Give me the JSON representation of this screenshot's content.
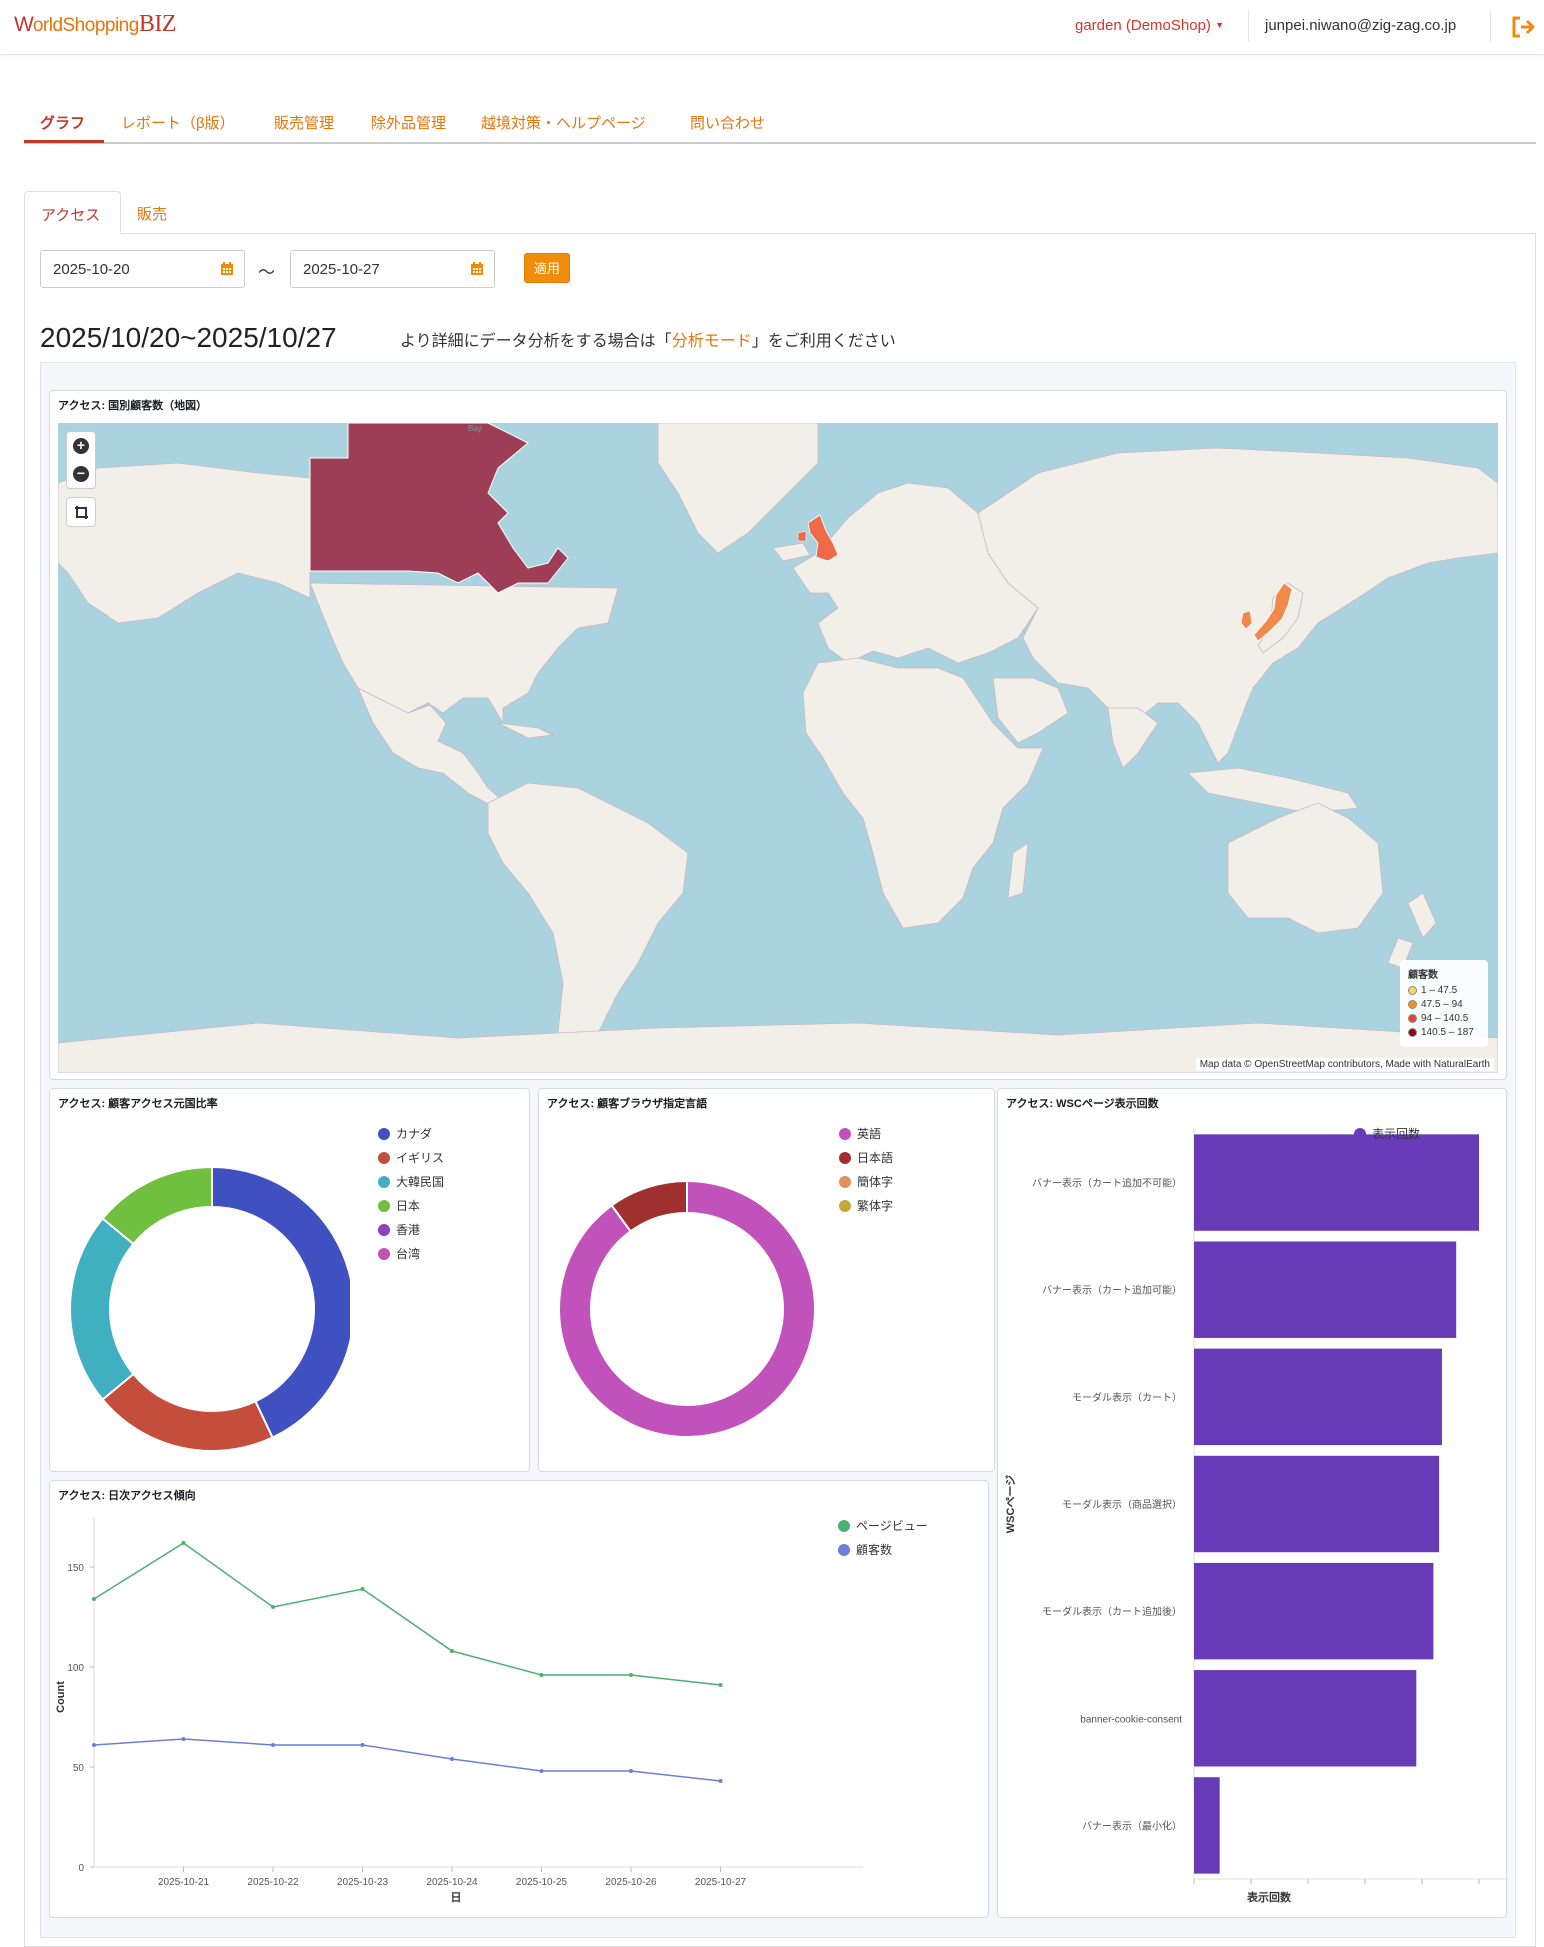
{
  "header": {
    "logo_part1": "W",
    "logo_part2": "orldShopping",
    "logo_part3": "BIZ",
    "shop_selector": "garden (DemoShop)",
    "user_email": "junpei.niwano@zig-zag.co.jp"
  },
  "main_nav": {
    "tabs": [
      "グラフ",
      "レポート（β版）",
      "販売管理",
      "除外品管理",
      "越境対策・ヘルプページ",
      "問い合わせ"
    ]
  },
  "sub_tabs": [
    "アクセス",
    "販売"
  ],
  "date_filter": {
    "start": "2025-10-20",
    "end": "2025-10-27",
    "separator": "〜",
    "apply_label": "適用"
  },
  "range_title": "2025/10/20~2025/10/27",
  "hint": {
    "before": "より詳細にデータ分析をする場合は「",
    "link": "分析モード",
    "after": "」をご利用ください"
  },
  "map_panel": {
    "title": "アクセス: 国別顧客数（地図）",
    "label_bay": "Bay",
    "legend_title": "顧客数",
    "legend": [
      {
        "label": "1 – 47.5",
        "color": "#f7d768"
      },
      {
        "label": "47.5 – 94",
        "color": "#f28e2c"
      },
      {
        "label": "94 – 140.5",
        "color": "#e8452c"
      },
      {
        "label": "140.5 – 187",
        "color": "#8b0a1a"
      }
    ],
    "attribution": "Map data © OpenStreetMap contributors, Made with NaturalEarth",
    "highlighted": [
      {
        "country": "Canada",
        "color": "#9e3e56"
      },
      {
        "country": "United Kingdom",
        "color": "#ee6a48"
      },
      {
        "country": "Japan",
        "color": "#f08a4b"
      },
      {
        "country": "South Korea",
        "color": "#f08a4b"
      }
    ]
  },
  "pie_country": {
    "title": "アクセス: 顧客アクセス元国比率",
    "chart_data": {
      "type": "pie",
      "labels": [
        "カナダ",
        "イギリス",
        "大韓民国",
        "日本",
        "香港",
        "台湾"
      ],
      "values": [
        43,
        21,
        22,
        14,
        0,
        0
      ],
      "colors": [
        "#3f51c0",
        "#c44d3c",
        "#40b0c0",
        "#70c040",
        "#8e3fbf",
        "#c44fb7"
      ]
    }
  },
  "pie_lang": {
    "title": "アクセス: 顧客ブラウザ指定言語",
    "chart_data": {
      "type": "pie",
      "labels": [
        "英語",
        "日本語",
        "簡体字",
        "繁体字"
      ],
      "values": [
        90,
        10,
        0,
        0
      ],
      "colors": [
        "#c152bc",
        "#a0302e",
        "#e0935a",
        "#c7a83a"
      ]
    }
  },
  "bar_wsc": {
    "title": "アクセス: WSCページ表示回数",
    "chart_data": {
      "type": "bar",
      "orientation": "horizontal",
      "categories": [
        "バナー表示（カート追加不可能）",
        "バナー表示（カート追加可能）",
        "モーダル表示（カート）",
        "モーダル表示（商品選択）",
        "モーダル表示（カート追加後）",
        "banner-cookie-consent",
        "バナー表示（最小化）"
      ],
      "values": [
        100,
        92,
        87,
        86,
        84,
        78,
        9
      ],
      "xlabel": "表示回数",
      "ylabel": "WSCページ",
      "series_name": "表示回数",
      "color": "#673ab7"
    }
  },
  "line_daily": {
    "title": "アクセス: 日次アクセス傾向",
    "chart_data": {
      "type": "line",
      "x": [
        "2025-10-20",
        "2025-10-21",
        "2025-10-22",
        "2025-10-23",
        "2025-10-24",
        "2025-10-25",
        "2025-10-26",
        "2025-10-27"
      ],
      "x_tick_labels": [
        "2025-10-21",
        "2025-10-22",
        "2025-10-23",
        "2025-10-24",
        "2025-10-25",
        "2025-10-26",
        "2025-10-27"
      ],
      "series": [
        {
          "name": "ページビュー",
          "values": [
            134,
            162,
            130,
            139,
            108,
            96,
            96,
            91
          ],
          "color": "#4caf70"
        },
        {
          "name": "顧客数",
          "values": [
            61,
            64,
            61,
            61,
            54,
            48,
            48,
            43
          ],
          "color": "#6a7fd6"
        }
      ],
      "yticks": [
        0,
        50,
        100,
        150
      ],
      "ylim": [
        0,
        175
      ],
      "xlabel": "日",
      "ylabel": "Count"
    }
  }
}
